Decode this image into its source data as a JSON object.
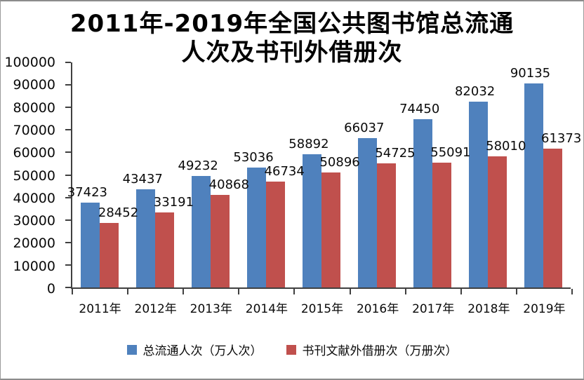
{
  "title": {
    "line1": "2011年-2019年全国公共图书馆总流通",
    "line2": "人次及书刊外借册次"
  },
  "chart_data": {
    "type": "bar",
    "categories": [
      "2011年",
      "2012年",
      "2013年",
      "2014年",
      "2015年",
      "2016年",
      "2017年",
      "2018年",
      "2019年"
    ],
    "series": [
      {
        "name": "总流通人次（万人次）",
        "color": "#4F81BD",
        "values": [
          37423,
          43437,
          49232,
          53036,
          58892,
          66037,
          74450,
          82032,
          90135
        ]
      },
      {
        "name": "书刊文献外借册次（万册次）",
        "color": "#C0504D",
        "values": [
          28452,
          33191,
          40868,
          46734,
          50896,
          54725,
          55091,
          58010,
          61373
        ]
      }
    ],
    "ylim": [
      0,
      100000
    ],
    "ytick_step": 10000,
    "yticks": [
      0,
      10000,
      20000,
      30000,
      40000,
      50000,
      60000,
      70000,
      80000,
      90000,
      100000
    ],
    "grid": false,
    "legend_position": "bottom",
    "data_labels": true
  }
}
